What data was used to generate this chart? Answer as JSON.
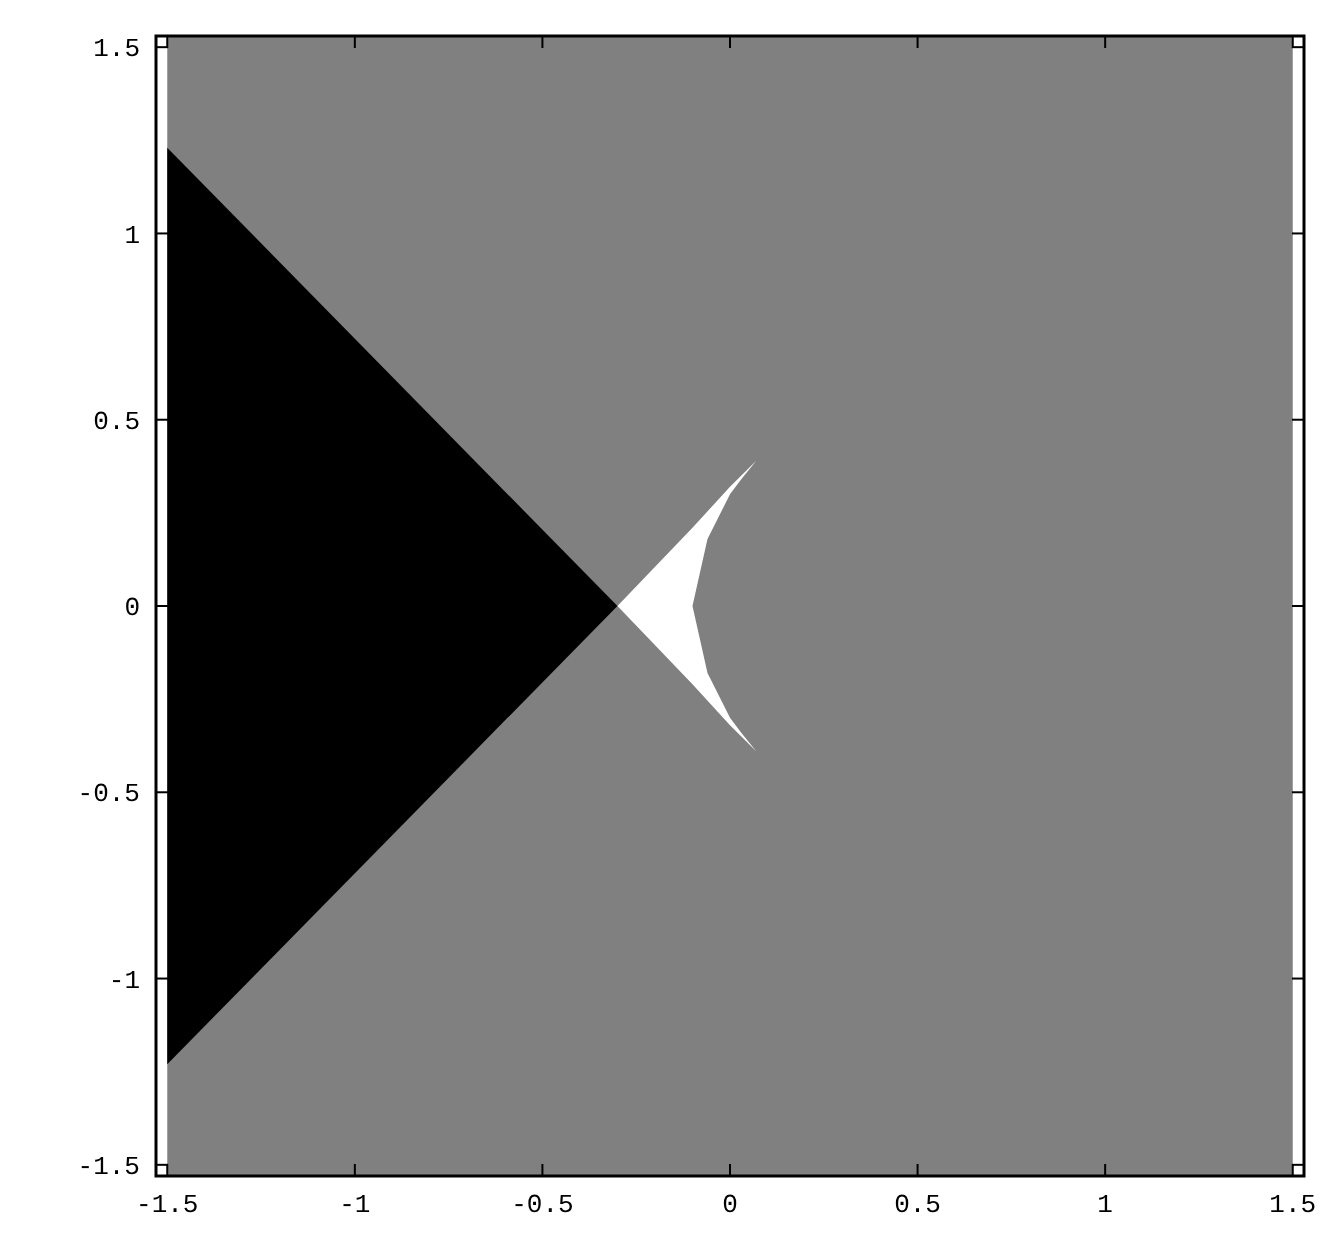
{
  "chart_data": {
    "type": "area",
    "xlim": [
      -1.53,
      1.53
    ],
    "ylim": [
      -1.53,
      1.53
    ],
    "xticks": [
      -1.5,
      -1,
      -0.5,
      0,
      0.5,
      1,
      1.5
    ],
    "yticks": [
      -1.5,
      -1,
      -0.5,
      0,
      0.5,
      1,
      1.5
    ],
    "grid": false,
    "bands": [
      {
        "axis": "x",
        "from": -1.5,
        "to": 1.5,
        "color": "#808080"
      }
    ],
    "series": [
      {
        "color": "#000000",
        "x": [
          -1.5,
          -0.3,
          -1.5
        ],
        "values": [
          1.23,
          0,
          -1.23
        ]
      },
      {
        "color": "#ffffff",
        "x": [
          -0.3,
          -0.1,
          0,
          0.07,
          0.03,
          0,
          -0.06,
          -0.1,
          -0.06,
          0,
          0.03,
          0.07,
          0,
          -0.1
        ],
        "values": [
          0,
          0.21,
          0.32,
          0.39,
          0.34,
          0.3,
          0.18,
          0,
          -0.18,
          -0.3,
          -0.34,
          -0.39,
          -0.32,
          -0.21
        ]
      }
    ]
  }
}
